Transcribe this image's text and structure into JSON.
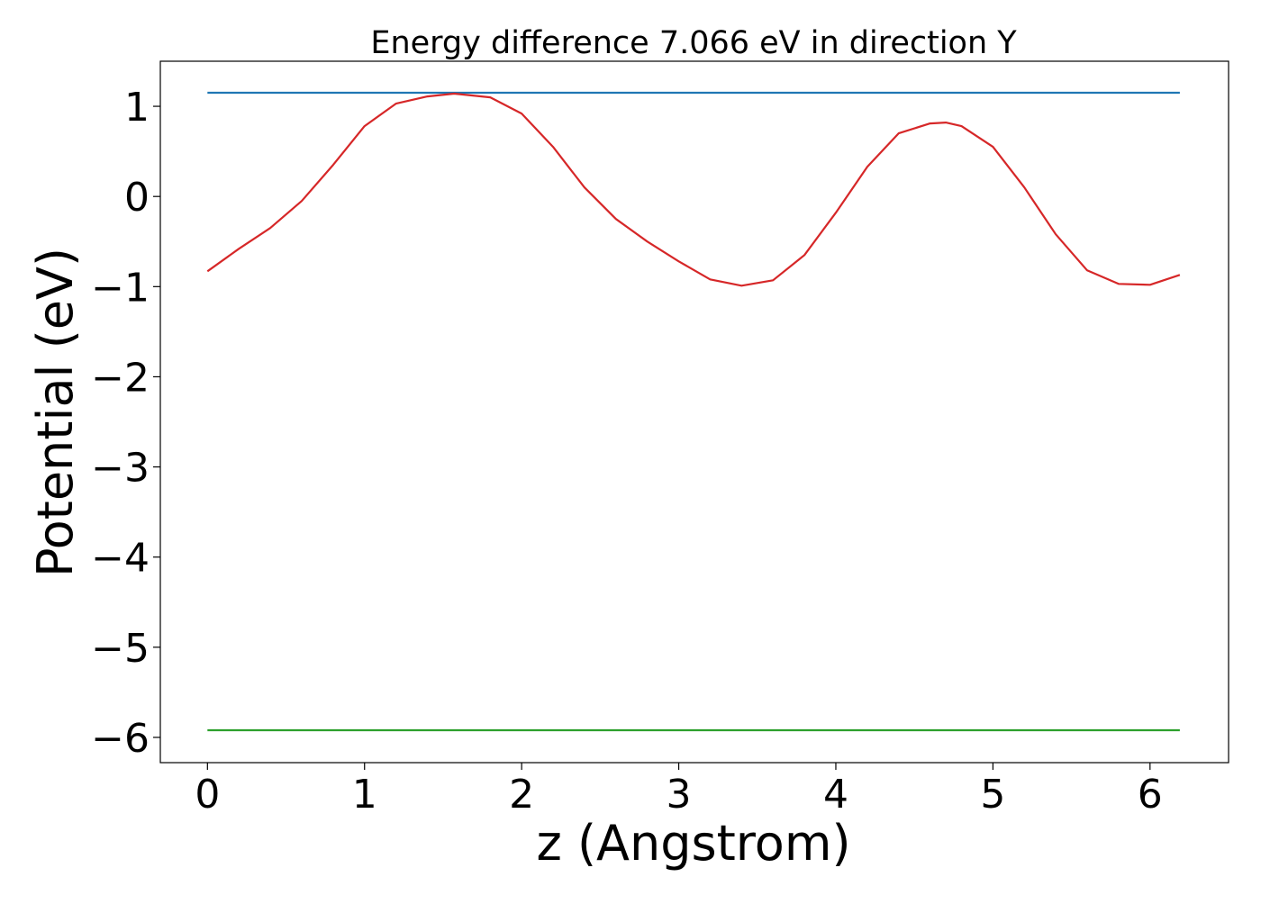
{
  "chart_data": {
    "type": "line",
    "title": "Energy difference 7.066 eV in direction Y",
    "xlabel": "z (Angstrom)",
    "ylabel": "Potential (eV)",
    "xlim": [
      -0.3,
      6.5
    ],
    "ylim": [
      -6.28,
      1.5
    ],
    "xticks": [
      0,
      1,
      2,
      3,
      4,
      5,
      6
    ],
    "yticks": [
      1,
      0,
      -1,
      -2,
      -3,
      -4,
      -5,
      -6
    ],
    "grid": false,
    "legend": "none",
    "series": [
      {
        "color": "#1f77b4",
        "x": [
          0,
          6.19
        ],
        "y": [
          1.15,
          1.15
        ]
      },
      {
        "color": "#2ca02c",
        "x": [
          0,
          6.19
        ],
        "y": [
          -5.92,
          -5.92
        ]
      },
      {
        "color": "#d62728",
        "x": [
          0,
          0.2,
          0.4,
          0.6,
          0.8,
          1.0,
          1.2,
          1.4,
          1.57,
          1.8,
          2.0,
          2.2,
          2.4,
          2.6,
          2.8,
          3.0,
          3.2,
          3.4,
          3.6,
          3.8,
          4.0,
          4.2,
          4.4,
          4.6,
          4.7,
          4.8,
          5.0,
          5.2,
          5.4,
          5.6,
          5.8,
          6.0,
          6.19
        ],
        "y": [
          -0.83,
          -0.58,
          -0.35,
          -0.05,
          0.35,
          0.78,
          1.03,
          1.11,
          1.14,
          1.1,
          0.92,
          0.55,
          0.1,
          -0.25,
          -0.5,
          -0.72,
          -0.92,
          -0.99,
          -0.93,
          -0.65,
          -0.18,
          0.33,
          0.7,
          0.81,
          0.82,
          0.78,
          0.55,
          0.1,
          -0.42,
          -0.82,
          -0.97,
          -0.98,
          -0.87
        ]
      }
    ]
  }
}
